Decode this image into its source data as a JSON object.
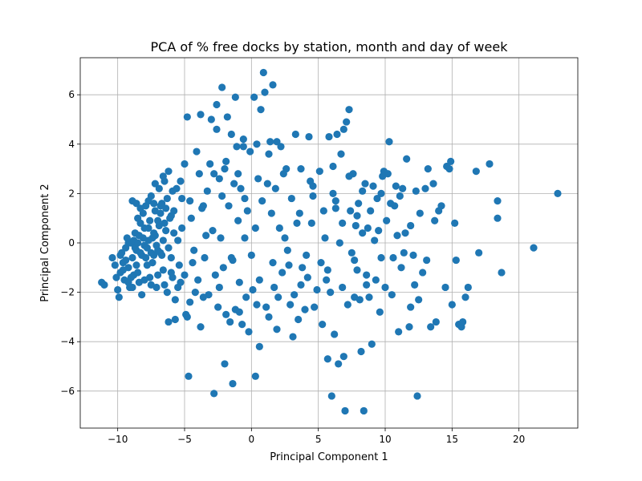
{
  "chart_data": {
    "type": "scatter",
    "title": "PCA of % free docks by station, month and day of week",
    "xlabel": "Principal Component 1",
    "ylabel": "Principal Component 2",
    "xlim": [
      -12.8,
      24.4
    ],
    "ylim": [
      -7.5,
      7.5
    ],
    "xticks": [
      -10,
      -5,
      0,
      5,
      10,
      15,
      20
    ],
    "yticks": [
      -6,
      -4,
      -2,
      0,
      2,
      4,
      6
    ],
    "grid": true,
    "marker_color": "#1f77b4",
    "points": [
      [
        -11.2,
        -1.6
      ],
      [
        -11.0,
        -1.7
      ],
      [
        -10.4,
        -0.6
      ],
      [
        -10.2,
        -0.9
      ],
      [
        -10.1,
        -1.4
      ],
      [
        -10.0,
        -1.9
      ],
      [
        -9.9,
        -2.2
      ],
      [
        -9.8,
        -1.2
      ],
      [
        -9.7,
        -0.4
      ],
      [
        -9.6,
        -0.8
      ],
      [
        -9.5,
        -1.5
      ],
      [
        -9.4,
        -0.2
      ],
      [
        -9.3,
        0.2
      ],
      [
        -9.2,
        -1.0
      ],
      [
        -9.1,
        -1.8
      ],
      [
        -9.0,
        0.0
      ],
      [
        -8.9,
        -0.6
      ],
      [
        -8.8,
        -1.3
      ],
      [
        -8.7,
        0.4
      ],
      [
        -8.6,
        -0.3
      ],
      [
        -8.5,
        1.0
      ],
      [
        -8.4,
        -1.6
      ],
      [
        -8.3,
        0.8
      ],
      [
        -8.2,
        -2.1
      ],
      [
        -8.1,
        1.2
      ],
      [
        -8.0,
        -0.1
      ],
      [
        -7.9,
        1.5
      ],
      [
        -7.8,
        -0.9
      ],
      [
        -7.7,
        0.6
      ],
      [
        -7.6,
        -1.4
      ],
      [
        -7.5,
        1.9
      ],
      [
        -7.4,
        0.2
      ],
      [
        -7.3,
        -0.5
      ],
      [
        -7.2,
        1.3
      ],
      [
        -7.1,
        -1.8
      ],
      [
        -7.0,
        0.9
      ],
      [
        -6.9,
        2.2
      ],
      [
        -6.8,
        -0.4
      ],
      [
        -6.7,
        1.6
      ],
      [
        -6.6,
        -1.1
      ],
      [
        -6.5,
        2.5
      ],
      [
        -6.4,
        0.5
      ],
      [
        -6.3,
        -2.0
      ],
      [
        -6.2,
        2.9
      ],
      [
        -6.1,
        1.0
      ],
      [
        -6.0,
        -0.6
      ],
      [
        -5.9,
        -1.4
      ],
      [
        -5.8,
        1.3
      ],
      [
        -5.7,
        -2.3
      ],
      [
        -5.6,
        2.2
      ],
      [
        -5.5,
        0.1
      ],
      [
        -5.4,
        -0.9
      ],
      [
        -5.3,
        -1.6
      ],
      [
        -5.2,
        1.8
      ],
      [
        -5.0,
        3.2
      ],
      [
        -9.8,
        -0.5
      ],
      [
        -9.6,
        -1.1
      ],
      [
        -9.4,
        -0.7
      ],
      [
        -9.2,
        0.0
      ],
      [
        -9.0,
        -1.4
      ],
      [
        -8.8,
        0.1
      ],
      [
        -8.6,
        -0.9
      ],
      [
        -8.4,
        0.3
      ],
      [
        -8.2,
        -0.5
      ],
      [
        -8.0,
        0.6
      ],
      [
        -7.8,
        -0.2
      ],
      [
        -7.6,
        0.9
      ],
      [
        -7.4,
        -0.8
      ],
      [
        -7.2,
        0.3
      ],
      [
        -7.0,
        -0.3
      ],
      [
        -6.8,
        1.2
      ],
      [
        -6.6,
        0.1
      ],
      [
        -6.4,
        1.4
      ],
      [
        -6.2,
        -0.2
      ],
      [
        -6.0,
        1.1
      ],
      [
        -5.8,
        0.4
      ],
      [
        -8.7,
        -0.2
      ],
      [
        -8.5,
        0.0
      ],
      [
        -8.3,
        -0.4
      ],
      [
        -8.1,
        0.2
      ],
      [
        -7.9,
        -0.6
      ],
      [
        -7.7,
        0.1
      ],
      [
        -7.5,
        -0.4
      ],
      [
        -7.3,
        0.4
      ],
      [
        -7.1,
        -0.1
      ],
      [
        -6.9,
        0.7
      ],
      [
        -6.7,
        -0.5
      ],
      [
        -6.5,
        0.8
      ],
      [
        -8.9,
        1.7
      ],
      [
        -8.6,
        1.6
      ],
      [
        -8.3,
        1.4
      ],
      [
        -7.7,
        1.7
      ],
      [
        -7.3,
        1.6
      ],
      [
        -6.8,
        1.5
      ],
      [
        -6.3,
        1.8
      ],
      [
        -5.9,
        2.1
      ],
      [
        -9.2,
        -1.6
      ],
      [
        -8.9,
        -1.8
      ],
      [
        -8.5,
        -1.2
      ],
      [
        -8.0,
        -1.5
      ],
      [
        -7.5,
        -1.7
      ],
      [
        -7.0,
        -1.3
      ],
      [
        -6.5,
        -1.7
      ],
      [
        -6.0,
        -1.2
      ],
      [
        -5.5,
        -1.8
      ],
      [
        -5.0,
        -1.3
      ],
      [
        -4.8,
        5.1
      ],
      [
        -4.5,
        1.0
      ],
      [
        -4.3,
        -0.3
      ],
      [
        -4.1,
        3.7
      ],
      [
        -4.0,
        -1.5
      ],
      [
        -3.8,
        5.2
      ],
      [
        -3.6,
        1.5
      ],
      [
        -3.5,
        -0.6
      ],
      [
        -3.3,
        2.1
      ],
      [
        -3.2,
        -2.1
      ],
      [
        -3.0,
        5.0
      ],
      [
        -2.9,
        0.5
      ],
      [
        -2.8,
        2.8
      ],
      [
        -2.7,
        -1.3
      ],
      [
        -2.6,
        5.6
      ],
      [
        -2.5,
        -2.6
      ],
      [
        -2.4,
        2.6
      ],
      [
        -2.3,
        0.2
      ],
      [
        -2.2,
        6.3
      ],
      [
        -2.1,
        -1.0
      ],
      [
        -2.0,
        3.0
      ],
      [
        -1.9,
        -2.9
      ],
      [
        -1.8,
        5.1
      ],
      [
        -1.7,
        1.5
      ],
      [
        -1.6,
        -3.2
      ],
      [
        -1.5,
        4.4
      ],
      [
        -1.4,
        -0.7
      ],
      [
        -1.3,
        2.4
      ],
      [
        -1.2,
        -2.7
      ],
      [
        -1.1,
        3.9
      ],
      [
        -1.0,
        0.9
      ],
      [
        -0.9,
        -1.6
      ],
      [
        -0.8,
        2.2
      ],
      [
        -0.7,
        -3.3
      ],
      [
        -0.6,
        4.2
      ],
      [
        -0.5,
        0.2
      ],
      [
        -0.4,
        -2.2
      ],
      [
        -0.3,
        1.3
      ],
      [
        -0.2,
        -3.6
      ],
      [
        -0.1,
        3.7
      ],
      [
        0.0,
        -0.5
      ],
      [
        0.1,
        -1.9
      ],
      [
        0.2,
        5.9
      ],
      [
        0.3,
        0.6
      ],
      [
        0.4,
        -2.5
      ],
      [
        0.5,
        2.6
      ],
      [
        0.6,
        -4.2
      ],
      [
        0.7,
        5.4
      ],
      [
        0.8,
        1.7
      ],
      [
        0.9,
        6.9
      ],
      [
        1.0,
        6.1
      ],
      [
        1.1,
        -2.6
      ],
      [
        1.2,
        2.4
      ],
      [
        1.3,
        -3.0
      ],
      [
        1.4,
        4.1
      ],
      [
        1.5,
        1.2
      ],
      [
        1.6,
        6.4
      ],
      [
        1.7,
        -1.8
      ],
      [
        1.8,
        2.2
      ],
      [
        1.9,
        4.1
      ],
      [
        2.0,
        -2.2
      ],
      [
        2.1,
        0.6
      ],
      [
        2.2,
        3.9
      ],
      [
        2.3,
        -1.2
      ],
      [
        2.5,
        0.2
      ],
      [
        2.6,
        3.0
      ],
      [
        2.8,
        -0.9
      ],
      [
        3.0,
        1.8
      ],
      [
        3.1,
        -3.8
      ],
      [
        3.2,
        -2.1
      ],
      [
        3.3,
        4.4
      ],
      [
        3.4,
        0.8
      ],
      [
        3.5,
        -3.1
      ],
      [
        3.6,
        1.2
      ],
      [
        3.8,
        -1.0
      ],
      [
        4.0,
        -2.7
      ],
      [
        4.1,
        -0.5
      ],
      [
        4.3,
        4.3
      ],
      [
        4.4,
        2.5
      ],
      [
        4.5,
        0.8
      ],
      [
        4.7,
        -2.6
      ],
      [
        4.9,
        -1.9
      ],
      [
        5.1,
        2.9
      ],
      [
        5.2,
        -0.8
      ],
      [
        5.3,
        -3.3
      ],
      [
        5.4,
        1.3
      ],
      [
        5.6,
        -1.5
      ],
      [
        5.8,
        4.3
      ],
      [
        5.9,
        -2.0
      ],
      [
        6.0,
        -6.2
      ],
      [
        6.1,
        2.0
      ],
      [
        6.2,
        -3.7
      ],
      [
        6.3,
        1.4
      ],
      [
        6.4,
        4.4
      ],
      [
        6.5,
        -4.9
      ],
      [
        6.6,
        0.0
      ],
      [
        6.7,
        3.6
      ],
      [
        6.8,
        -1.8
      ],
      [
        6.9,
        4.6
      ],
      [
        7.0,
        -6.8
      ],
      [
        7.1,
        4.9
      ],
      [
        7.2,
        -2.5
      ],
      [
        7.3,
        5.4
      ],
      [
        7.4,
        1.3
      ],
      [
        7.5,
        -0.4
      ],
      [
        7.6,
        2.8
      ],
      [
        7.7,
        -2.2
      ],
      [
        7.8,
        0.7
      ],
      [
        7.9,
        -1.1
      ],
      [
        8.0,
        1.6
      ],
      [
        8.1,
        -2.3
      ],
      [
        8.2,
        -4.4
      ],
      [
        8.3,
        0.4
      ],
      [
        8.4,
        -6.8
      ],
      [
        8.5,
        2.4
      ],
      [
        8.6,
        -1.3
      ],
      [
        8.7,
        0.6
      ],
      [
        8.8,
        -2.2
      ],
      [
        8.9,
        1.3
      ],
      [
        9.0,
        -4.1
      ],
      [
        9.1,
        2.3
      ],
      [
        9.2,
        0.1
      ],
      [
        9.3,
        -1.5
      ],
      [
        9.4,
        1.8
      ],
      [
        9.6,
        -2.8
      ],
      [
        9.7,
        -0.6
      ],
      [
        9.8,
        2.7
      ],
      [
        10.0,
        -1.8
      ],
      [
        10.1,
        0.9
      ],
      [
        10.2,
        2.8
      ],
      [
        10.3,
        4.1
      ],
      [
        10.4,
        1.6
      ],
      [
        10.5,
        -2.1
      ],
      [
        10.6,
        -0.6
      ],
      [
        10.8,
        2.3
      ],
      [
        10.9,
        0.3
      ],
      [
        11.0,
        -3.6
      ],
      [
        11.1,
        1.9
      ],
      [
        11.2,
        -1.0
      ],
      [
        11.3,
        2.2
      ],
      [
        11.5,
        0.4
      ],
      [
        11.6,
        3.4
      ],
      [
        11.8,
        -3.4
      ],
      [
        11.9,
        0.7
      ],
      [
        12.1,
        -0.5
      ],
      [
        12.3,
        2.1
      ],
      [
        12.4,
        -6.2
      ],
      [
        12.5,
        -2.3
      ],
      [
        12.6,
        1.2
      ],
      [
        12.8,
        -1.2
      ],
      [
        13.0,
        2.2
      ],
      [
        13.2,
        3.0
      ],
      [
        13.4,
        -3.4
      ],
      [
        13.6,
        2.4
      ],
      [
        13.8,
        -3.2
      ],
      [
        14.0,
        1.3
      ],
      [
        14.2,
        1.5
      ],
      [
        14.5,
        -1.8
      ],
      [
        14.8,
        3.0
      ],
      [
        15.0,
        -2.5
      ],
      [
        15.2,
        0.8
      ],
      [
        15.3,
        -0.7
      ],
      [
        15.5,
        -3.3
      ],
      [
        15.7,
        -3.4
      ],
      [
        16.0,
        -2.2
      ],
      [
        16.2,
        -1.8
      ],
      [
        16.8,
        2.9
      ],
      [
        17.0,
        -0.4
      ],
      [
        17.8,
        3.2
      ],
      [
        18.4,
        1.7
      ],
      [
        18.7,
        -1.2
      ],
      [
        21.1,
        -0.2
      ],
      [
        22.9,
        2.0
      ],
      [
        18.4,
        1.0
      ],
      [
        15.8,
        -3.2
      ],
      [
        14.9,
        3.3
      ],
      [
        13.7,
        0.9
      ],
      [
        12.2,
        -1.7
      ],
      [
        11.4,
        -0.4
      ],
      [
        10.7,
        1.5
      ],
      [
        9.5,
        0.5
      ],
      [
        8.6,
        -1.7
      ],
      [
        7.7,
        -0.7
      ],
      [
        6.8,
        0.8
      ],
      [
        5.7,
        -1.1
      ],
      [
        4.6,
        1.9
      ],
      [
        3.7,
        -1.7
      ],
      [
        2.7,
        -0.3
      ],
      [
        1.6,
        -0.8
      ],
      [
        0.6,
        -1.5
      ],
      [
        -0.5,
        1.8
      ],
      [
        -1.5,
        -0.6
      ],
      [
        -2.4,
        -1.8
      ],
      [
        -3.4,
        0.3
      ],
      [
        -4.4,
        -0.8
      ],
      [
        -4.6,
        -2.4
      ],
      [
        -4.9,
        -2.9
      ],
      [
        -5.2,
        0.6
      ],
      [
        -4.2,
        -2.0
      ],
      [
        -3.9,
        2.8
      ],
      [
        -3.1,
        3.2
      ],
      [
        -2.6,
        4.6
      ],
      [
        -1.9,
        3.3
      ],
      [
        -1.2,
        5.9
      ],
      [
        -0.6,
        3.9
      ],
      [
        -6.2,
        -3.2
      ],
      [
        -5.7,
        -3.1
      ],
      [
        -4.8,
        -3.0
      ],
      [
        -4.7,
        -5.4
      ],
      [
        -3.8,
        -3.4
      ],
      [
        -2.8,
        -6.1
      ],
      [
        -2.0,
        -4.9
      ],
      [
        -1.4,
        -5.7
      ],
      [
        0.3,
        -5.4
      ],
      [
        5.7,
        -4.7
      ],
      [
        6.9,
        -4.6
      ],
      [
        1.9,
        -3.5
      ],
      [
        -0.9,
        -2.8
      ],
      [
        -3.6,
        -2.2
      ],
      [
        2.9,
        -2.5
      ],
      [
        4.2,
        -1.4
      ],
      [
        5.5,
        0.2
      ],
      [
        6.3,
        1.7
      ],
      [
        7.9,
        1.1
      ],
      [
        9.9,
        2.9
      ],
      [
        11.9,
        -2.6
      ],
      [
        13.1,
        -0.7
      ],
      [
        14.6,
        3.1
      ],
      [
        -5.3,
        2.5
      ],
      [
        -6.6,
        2.7
      ],
      [
        -7.2,
        2.4
      ],
      [
        -4.6,
        1.7
      ],
      [
        -3.7,
        1.4
      ],
      [
        -2.2,
        1.9
      ],
      [
        -1.0,
        2.8
      ],
      [
        0.4,
        4.0
      ],
      [
        1.3,
        3.6
      ],
      [
        2.4,
        2.8
      ],
      [
        3.7,
        3.0
      ],
      [
        4.6,
        2.3
      ],
      [
        6.1,
        3.1
      ],
      [
        7.3,
        2.7
      ],
      [
        8.3,
        2.1
      ],
      [
        9.7,
        2.0
      ]
    ]
  }
}
